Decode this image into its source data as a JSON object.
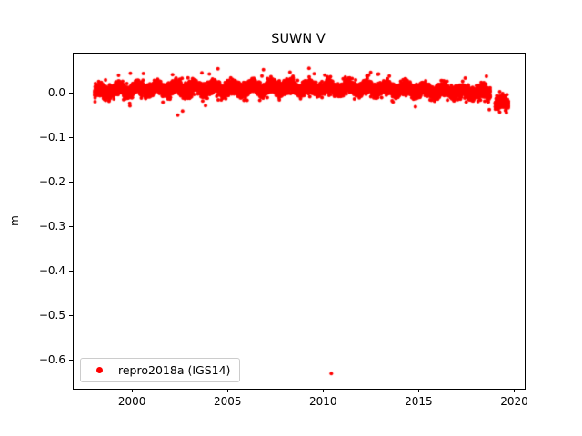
{
  "title": "SUWN V",
  "ylabel": "m",
  "legend": {
    "label": "repro2018a (IGS14)",
    "marker_color": "#ff0000"
  },
  "chart_data": {
    "type": "scatter",
    "title": "SUWN V",
    "xlabel": "",
    "ylabel": "m",
    "grid": false,
    "xlim": [
      1996.9,
      2020.5
    ],
    "ylim": [
      -0.662,
      0.091
    ],
    "x_ticks": [
      2000,
      2005,
      2010,
      2015,
      2020
    ],
    "x_tick_labels": [
      "2000",
      "2005",
      "2010",
      "2015",
      "2020"
    ],
    "y_ticks": [
      0.0,
      -0.1,
      -0.2,
      -0.3,
      -0.4,
      -0.5,
      -0.6
    ],
    "y_tick_labels": [
      "0.0",
      "−0.1",
      "−0.2",
      "−0.3",
      "−0.4",
      "−0.5",
      "−0.6"
    ],
    "legend": {
      "position": "lower left",
      "label": "repro2018a (IGS14)"
    },
    "series": [
      {
        "name": "repro2018a (IGS14)",
        "color": "#ff0000",
        "marker": "dot",
        "marker_radius_px": 2,
        "band": {
          "description": "dense daily vertical-component residuals near zero",
          "x_start": 1998.0,
          "x_end": 2019.65,
          "samples_per_year": 340,
          "trend": [
            [
              1998.0,
              0.005
            ],
            [
              2000.5,
              0.011
            ],
            [
              2004.0,
              0.012
            ],
            [
              2008.0,
              0.014
            ],
            [
              2013.0,
              0.013
            ],
            [
              2016.0,
              0.007
            ],
            [
              2018.7,
              0.003
            ],
            [
              2018.95,
              -0.021
            ],
            [
              2019.65,
              -0.019
            ]
          ],
          "seasonal_amplitude": 0.006,
          "seasonal_period_years": 1.0,
          "noise_std": 0.007,
          "spike_fraction": 0.03,
          "spike_scale": 2.2,
          "gap": {
            "x_start": 2018.7,
            "x_end": 2018.95
          },
          "seed": 42
        },
        "outliers": [
          [
            2010.38,
            -0.628
          ],
          [
            2004.45,
            0.057
          ],
          [
            2002.35,
            -0.047
          ],
          [
            2000.55,
            0.046
          ],
          [
            2002.6,
            -0.038
          ]
        ]
      }
    ]
  }
}
